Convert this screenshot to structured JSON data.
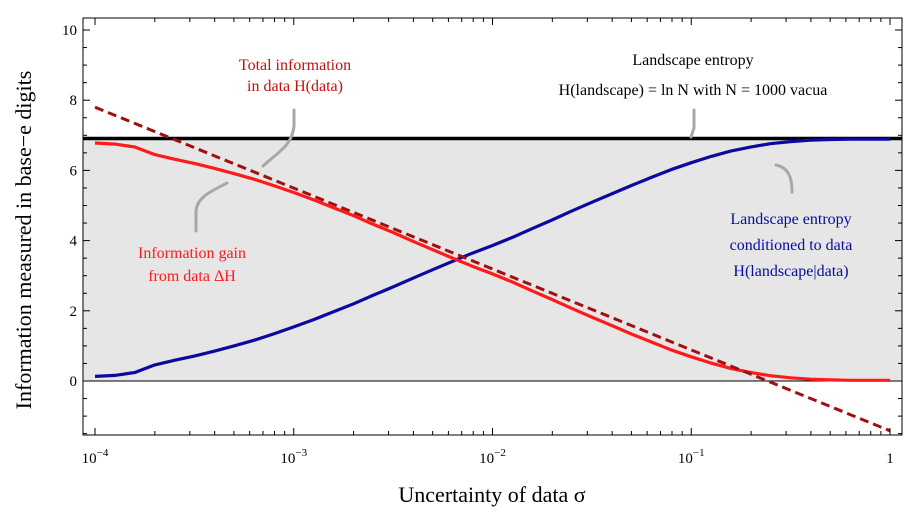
{
  "chart_data": {
    "type": "line",
    "xlabel": "Uncertainty of data σ",
    "ylabel": "Information measured in base−e digits",
    "x_scale": "log",
    "xlim": [
      0.0001,
      1
    ],
    "ylim": [
      -1.5,
      10.2
    ],
    "grid": false,
    "x_ticks": [
      {
        "value": 0.0001,
        "base": "10",
        "exp": "−4"
      },
      {
        "value": 0.001,
        "base": "10",
        "exp": "−3"
      },
      {
        "value": 0.01,
        "base": "10",
        "exp": "−2"
      },
      {
        "value": 0.1,
        "base": "10",
        "exp": "−1"
      },
      {
        "value": 1,
        "base": "1",
        "exp": ""
      }
    ],
    "y_ticks": [
      0,
      2,
      4,
      6,
      8,
      10
    ],
    "y_tick_labels": [
      "0",
      "2",
      "4",
      "6",
      "8",
      "10"
    ],
    "shaded_region": {
      "y_from": 0,
      "y_to": 6.91,
      "color": "#e6e6e6"
    },
    "series": [
      {
        "name": "Landscape entropy",
        "color": "#000000",
        "style": "solid",
        "x": [
          0.0001,
          1
        ],
        "y": [
          6.91,
          6.91
        ]
      },
      {
        "name": "Total information in data H(data)",
        "color": "#a01010",
        "style": "dashed",
        "x": [
          0.0001,
          1
        ],
        "y": [
          7.8,
          -1.42
        ]
      },
      {
        "name": "Information gain from data ΔH",
        "color": "#ff1a1a",
        "style": "solid",
        "x": [
          0.0001,
          0.000126,
          0.000158,
          0.0002,
          0.000251,
          0.000316,
          0.000398,
          0.0005,
          0.00063,
          0.00079,
          0.001,
          0.00126,
          0.00158,
          0.002,
          0.0025,
          0.00316,
          0.00398,
          0.005,
          0.0063,
          0.0079,
          0.01,
          0.0126,
          0.0158,
          0.02,
          0.025,
          0.0316,
          0.0398,
          0.05,
          0.063,
          0.079,
          0.1,
          0.126,
          0.158,
          0.2,
          0.25,
          0.316,
          0.398,
          0.5,
          0.63,
          0.79,
          1.0
        ],
        "y": [
          6.78,
          6.75,
          6.67,
          6.45,
          6.32,
          6.2,
          6.06,
          5.91,
          5.75,
          5.57,
          5.37,
          5.16,
          4.94,
          4.71,
          4.47,
          4.23,
          3.98,
          3.74,
          3.5,
          3.27,
          3.05,
          2.82,
          2.57,
          2.32,
          2.07,
          1.82,
          1.58,
          1.34,
          1.11,
          0.89,
          0.69,
          0.51,
          0.36,
          0.24,
          0.15,
          0.09,
          0.05,
          0.03,
          0.02,
          0.02,
          0.02
        ]
      },
      {
        "name": "Landscape entropy conditioned to data H(landscape|data)",
        "color": "#0a0aa0",
        "style": "solid",
        "x": [
          0.0001,
          0.000126,
          0.000158,
          0.0002,
          0.000251,
          0.000316,
          0.000398,
          0.0005,
          0.00063,
          0.00079,
          0.001,
          0.00126,
          0.00158,
          0.002,
          0.0025,
          0.00316,
          0.00398,
          0.005,
          0.0063,
          0.0079,
          0.01,
          0.0126,
          0.0158,
          0.02,
          0.025,
          0.0316,
          0.0398,
          0.05,
          0.063,
          0.079,
          0.1,
          0.126,
          0.158,
          0.2,
          0.25,
          0.316,
          0.398,
          0.5,
          0.63,
          0.79,
          1.0
        ],
        "y": [
          0.13,
          0.16,
          0.24,
          0.46,
          0.59,
          0.71,
          0.85,
          1.0,
          1.16,
          1.34,
          1.54,
          1.75,
          1.97,
          2.2,
          2.44,
          2.68,
          2.93,
          3.17,
          3.41,
          3.64,
          3.86,
          4.09,
          4.34,
          4.59,
          4.84,
          5.09,
          5.33,
          5.57,
          5.8,
          6.02,
          6.22,
          6.4,
          6.55,
          6.67,
          6.76,
          6.82,
          6.86,
          6.88,
          6.89,
          6.89,
          6.89
        ]
      }
    ],
    "annotations": [
      {
        "id": "total-info",
        "lines": [
          "Total information",
          "in data H(data)"
        ],
        "color": "#c01010"
      },
      {
        "id": "landscape-entropy",
        "lines": [
          "Landscape entropy",
          "H(landscape) = ln N with N = 1000 vacua"
        ],
        "color": "#000000"
      },
      {
        "id": "info-gain",
        "lines": [
          "Information gain",
          "from data ΔH"
        ],
        "color": "#ff1a1a"
      },
      {
        "id": "conditioned",
        "lines": [
          "Landscape entropy",
          "conditioned to data",
          "H(landscape|data)"
        ],
        "color": "#0a0aa0"
      }
    ]
  }
}
